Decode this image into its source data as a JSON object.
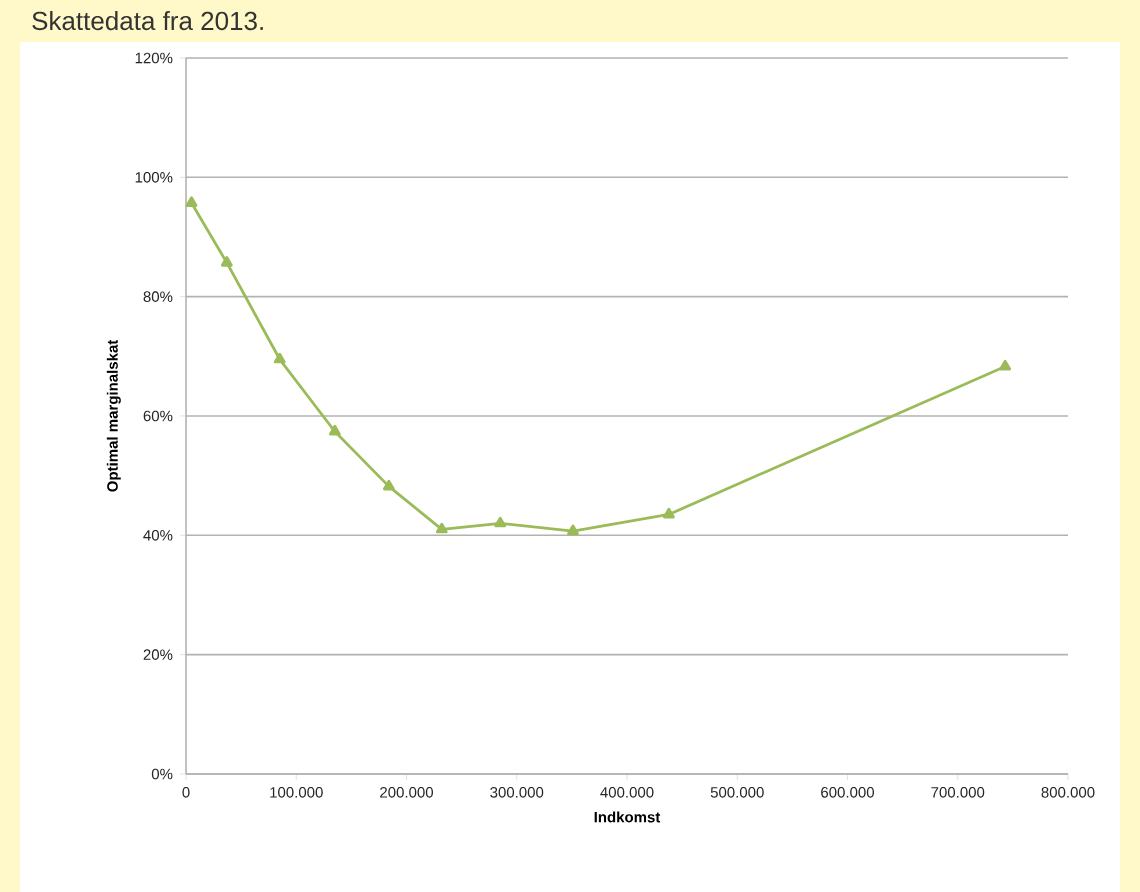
{
  "chart_data": {
    "type": "line",
    "xlabel": "Indkomst",
    "ylabel": "Optimal marginalskat",
    "annotations": [
      "Skattedata fra 2013."
    ],
    "x": [
      5000,
      37000,
      85000,
      135000,
      184000,
      232000,
      285000,
      351000,
      438000,
      743000
    ],
    "series": [
      {
        "color": "#9bbb59",
        "values": [
          95.7,
          85.7,
          69.5,
          57.4,
          48.2,
          41,
          42,
          40.7,
          43.5,
          68.3
        ]
      }
    ],
    "xlim": [
      0,
      800000
    ],
    "xticks": [
      0,
      {
        "value": 100000,
        "label": "100.000"
      },
      {
        "value": 200000,
        "label": "200.000"
      },
      {
        "value": 300000,
        "label": "300.000"
      },
      {
        "value": 400000,
        "label": "400.000"
      },
      {
        "value": 500000,
        "label": "500.000"
      },
      {
        "value": 600000,
        "label": "600.000"
      },
      {
        "value": 700000,
        "label": "700.000"
      },
      {
        "value": 800000,
        "label": "800.000"
      }
    ],
    "ylim": [
      0,
      120
    ],
    "yticks": [
      {
        "value": 0,
        "label": "0%"
      },
      {
        "value": 20,
        "label": "20%"
      },
      {
        "value": 40,
        "label": "40%"
      },
      {
        "value": 60,
        "label": "60%"
      },
      {
        "value": 80,
        "label": "80%"
      },
      {
        "value": 100,
        "label": "100%"
      },
      {
        "value": 120,
        "label": "120%"
      }
    ],
    "grid": "y",
    "marker": "triangle",
    "line_style": "solid"
  }
}
